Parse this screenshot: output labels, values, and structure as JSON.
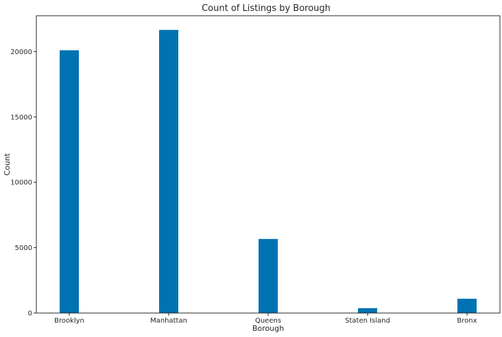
{
  "chart_data": {
    "type": "bar",
    "title": "Count of Listings by Borough",
    "xlabel": "Borough",
    "ylabel": "Count",
    "categories": [
      "Brooklyn",
      "Manhattan",
      "Queens",
      "Staten Island",
      "Bronx"
    ],
    "values": [
      20104,
      21661,
      5666,
      373,
      1091
    ],
    "ylim": [
      0,
      22744
    ],
    "yticks": [
      0,
      5000,
      10000,
      15000,
      20000
    ],
    "grid": false,
    "bar_color": "#0072b2"
  }
}
